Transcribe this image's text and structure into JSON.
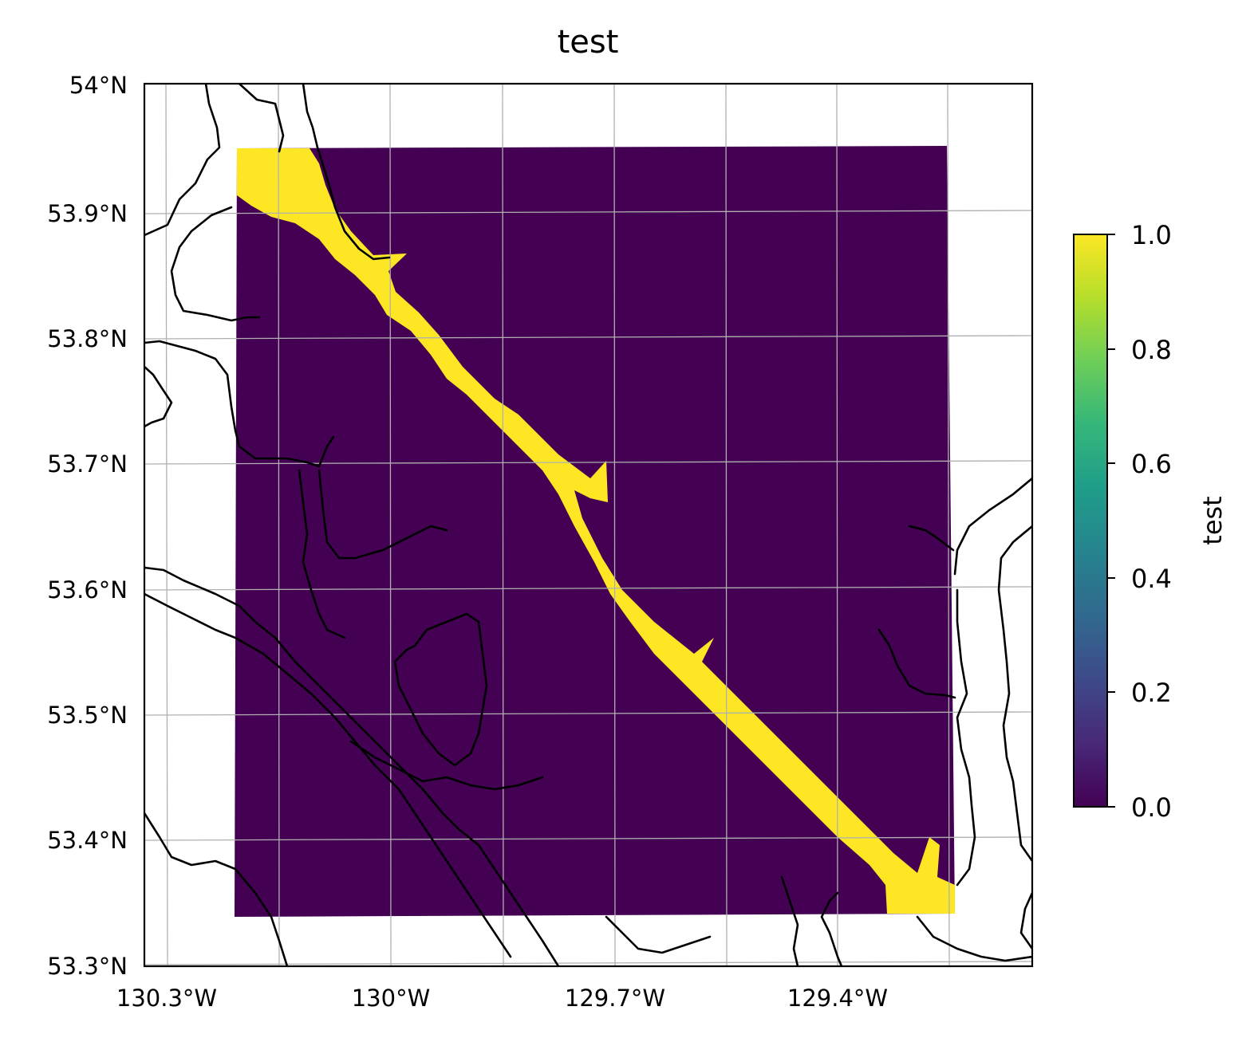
{
  "title": "test",
  "map": {
    "lat_labels": [
      "54°N",
      "53.9°N",
      "53.8°N",
      "53.7°N",
      "53.6°N",
      "53.5°N",
      "53.4°N",
      "53.3°N"
    ],
    "lon_labels": [
      "130.3°W",
      "130°W",
      "129.7°W",
      "129.4°W"
    ],
    "gridlines": true,
    "coastlines": true
  },
  "colorbar": {
    "label": "test",
    "ticks": [
      "0.0",
      "0.2",
      "0.4",
      "0.6",
      "0.8",
      "1.0"
    ],
    "colormap": "viridis",
    "colors": [
      "#440154",
      "#482878",
      "#3e4989",
      "#31688e",
      "#26828e",
      "#1f9e89",
      "#35b779",
      "#6ece58",
      "#b5de2b",
      "#fde725"
    ]
  },
  "chart_data": {
    "type": "heatmap",
    "title": "test",
    "value_range": [
      0,
      1
    ],
    "lat_range": [
      53.3,
      54.0
    ],
    "lon_range": [
      -130.35,
      -129.15
    ],
    "description_of_field": "binary mask: 1 along the channel running NW to SE, 0 elsewhere",
    "color_zero": "#440154",
    "color_one": "#fde725"
  }
}
